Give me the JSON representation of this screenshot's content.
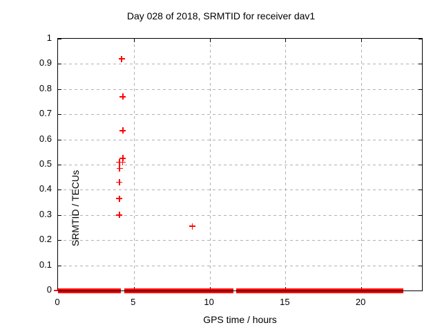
{
  "title": "Day 028 of 2018, SRMTID for receiver dav1",
  "chart_data": {
    "type": "scatter",
    "title": "Day 028 of 2018, SRMTID for receiver dav1",
    "xlabel": "GPS time / hours",
    "ylabel": "SRMTID / TECUs",
    "xlim": [
      0,
      24
    ],
    "ylim": [
      0,
      1
    ],
    "x_ticks": [
      0,
      5,
      10,
      15,
      20
    ],
    "x_tick_labels": [
      "0",
      "5",
      "10",
      "15",
      "20"
    ],
    "y_ticks": [
      0,
      0.1,
      0.2,
      0.3,
      0.4,
      0.5,
      0.6,
      0.7,
      0.8,
      0.9,
      1
    ],
    "y_tick_labels": [
      "0",
      "0.1",
      "0.2",
      "0.3",
      "0.4",
      "0.5",
      "0.6",
      "0.7",
      "0.8",
      "0.9",
      "1"
    ],
    "grid": true,
    "legend": "none",
    "marker": "plus",
    "marker_color": "#ff0000",
    "grid_color": "#b0b0b0",
    "border_color": "#000000",
    "points": [
      [
        4.2,
        0.92
      ],
      [
        4.28,
        0.77
      ],
      [
        4.27,
        0.635
      ],
      [
        4.28,
        0.525
      ],
      [
        4.05,
        0.51
      ],
      [
        4.26,
        0.51
      ],
      [
        4.06,
        0.485
      ],
      [
        4.05,
        0.43
      ],
      [
        4.05,
        0.365
      ],
      [
        4.05,
        0.3
      ],
      [
        8.85,
        0.255
      ]
    ],
    "zero_line_segments_hours": [
      [
        0,
        4.15
      ],
      [
        4.35,
        11.55
      ],
      [
        11.75,
        22.75
      ]
    ]
  }
}
